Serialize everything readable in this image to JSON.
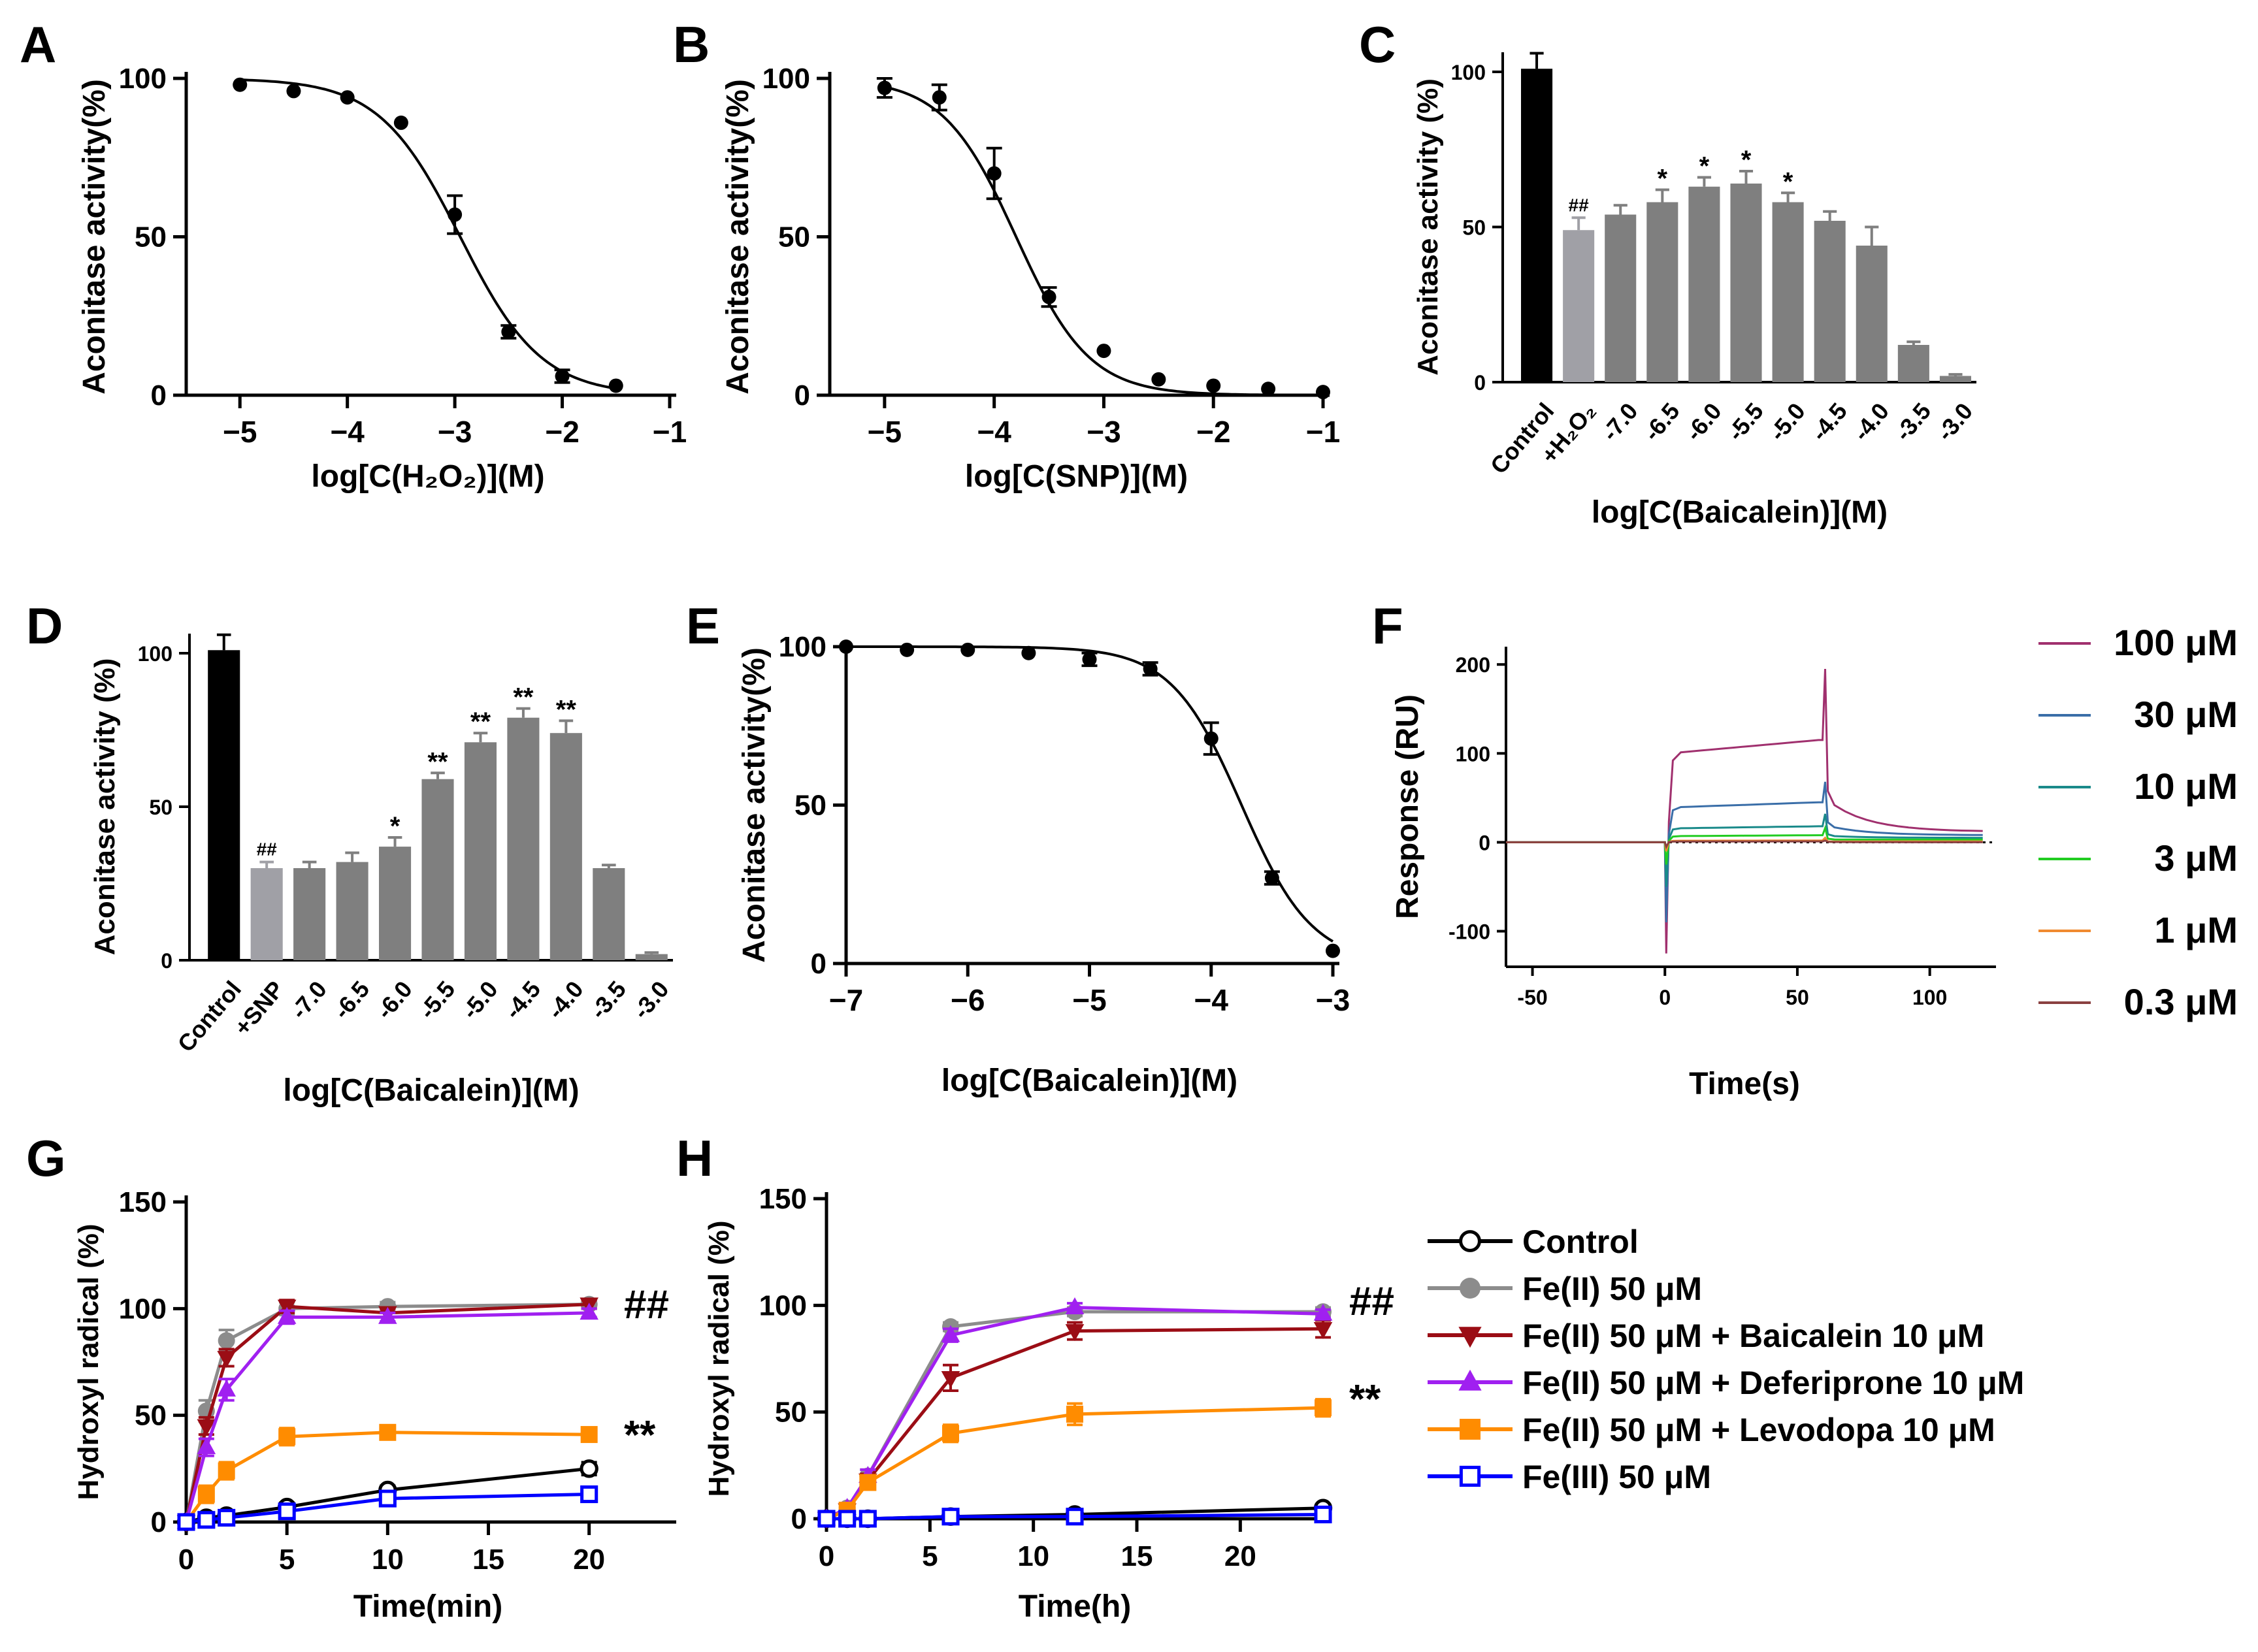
{
  "colors": {
    "black": "#000000",
    "bar_control": "#000000",
    "bar_stress": "#a0a0a6",
    "bar_treat": "#7f7f7f",
    "gray": "#8c8c8c",
    "darkred": "#9b0d15",
    "purple": "#a020f0",
    "orange": "#ff8c00",
    "blue": "#0000ff",
    "annot_gray": "#8c8c8c",
    "annot_orange": "#ff8c00"
  },
  "chart_data": [
    {
      "id": "A",
      "panel_letter": "A",
      "type": "scatter",
      "fit": "sigmoid",
      "xlabel": "log[C(H₂O₂)](M)",
      "ylabel": "Aconitase activity(%)",
      "xlim": [
        -5.5,
        -1
      ],
      "ylim": [
        0,
        100
      ],
      "xticks": [
        -5,
        -4,
        -3,
        -2,
        -1
      ],
      "xtick_labels": [
        "−5",
        "−4",
        "−3",
        "−2",
        "−1"
      ],
      "yticks": [
        0,
        50,
        100
      ],
      "ytick_labels": [
        "0",
        "50",
        "100"
      ],
      "points": [
        {
          "x": -5.0,
          "y": 98,
          "err": 0
        },
        {
          "x": -4.5,
          "y": 96,
          "err": 0
        },
        {
          "x": -4.0,
          "y": 94,
          "err": 0
        },
        {
          "x": -3.5,
          "y": 86,
          "err": 0
        },
        {
          "x": -3.0,
          "y": 57,
          "err": 6
        },
        {
          "x": -2.5,
          "y": 20,
          "err": 2
        },
        {
          "x": -2.0,
          "y": 6,
          "err": 2
        },
        {
          "x": -1.5,
          "y": 3,
          "err": 0
        }
      ],
      "curve": {
        "top": 100,
        "bottom": 0,
        "logIC50": -2.95,
        "hill": -1.15,
        "x_from": -5,
        "x_to": -1.5
      }
    },
    {
      "id": "B",
      "panel_letter": "B",
      "type": "scatter",
      "fit": "sigmoid",
      "xlabel": "log[C(SNP)](M)",
      "ylabel": "Aconitase activity(%)",
      "xlim": [
        -5.5,
        -1
      ],
      "ylim": [
        0,
        100
      ],
      "xticks": [
        -5,
        -4,
        -3,
        -2,
        -1
      ],
      "xtick_labels": [
        "−5",
        "−4",
        "−3",
        "−2",
        "−1"
      ],
      "yticks": [
        0,
        50,
        100
      ],
      "ytick_labels": [
        "0",
        "50",
        "100"
      ],
      "points": [
        {
          "x": -5.0,
          "y": 97,
          "err": 3
        },
        {
          "x": -4.5,
          "y": 94,
          "err": 4
        },
        {
          "x": -4.0,
          "y": 70,
          "err": 8
        },
        {
          "x": -3.5,
          "y": 31,
          "err": 3
        },
        {
          "x": -3.0,
          "y": 14,
          "err": 0
        },
        {
          "x": -2.5,
          "y": 5,
          "err": 0
        },
        {
          "x": -2.0,
          "y": 3,
          "err": 0
        },
        {
          "x": -1.5,
          "y": 2,
          "err": 0
        },
        {
          "x": -1.0,
          "y": 1,
          "err": 0
        }
      ],
      "curve": {
        "top": 100,
        "bottom": 0,
        "logIC50": -3.8,
        "hill": -1.3,
        "x_from": -5,
        "x_to": -1
      }
    },
    {
      "id": "C",
      "panel_letter": "C",
      "type": "bar",
      "xlabel": "log[C(Baicalein)](M)",
      "ylabel": "Aconitase activity (%)",
      "ylim": [
        0,
        100
      ],
      "yticks": [
        0,
        50,
        100
      ],
      "ytick_labels": [
        "0",
        "50",
        "100"
      ],
      "categories": [
        "Control",
        "+H₂O₂",
        "-7.0",
        "-6.5",
        "-6.0",
        "-5.5",
        "-5.0",
        "-4.5",
        "-4.0",
        "-3.5",
        "-3.0"
      ],
      "values": [
        101,
        49,
        54,
        58,
        63,
        64,
        58,
        52,
        44,
        12,
        2
      ],
      "errors": [
        5,
        4,
        3,
        4,
        3,
        4,
        3,
        3,
        6,
        1,
        0.5
      ],
      "annotations": [
        "",
        "##",
        "",
        "*",
        "*",
        "*",
        "*",
        "",
        "",
        "",
        ""
      ]
    },
    {
      "id": "D",
      "panel_letter": "D",
      "type": "bar",
      "xlabel": "log[C(Baicalein)](M)",
      "ylabel": "Aconitase activity (%)",
      "ylim": [
        0,
        100
      ],
      "yticks": [
        0,
        50,
        100
      ],
      "ytick_labels": [
        "0",
        "50",
        "100"
      ],
      "categories": [
        "Control",
        "+SNP",
        "-7.0",
        "-6.5",
        "-6.0",
        "-5.5",
        "-5.0",
        "-4.5",
        "-4.0",
        "-3.5",
        "-3.0"
      ],
      "values": [
        101,
        30,
        30,
        32,
        37,
        59,
        71,
        79,
        74,
        30,
        2
      ],
      "errors": [
        5,
        2,
        2,
        3,
        3,
        2,
        3,
        3,
        4,
        1,
        0.5
      ],
      "annotations": [
        "",
        "##",
        "",
        "",
        "*",
        "**",
        "**",
        "**",
        "**",
        "",
        ""
      ]
    },
    {
      "id": "E",
      "panel_letter": "E",
      "type": "scatter",
      "fit": "sigmoid",
      "xlabel": "log[C(Baicalein)](M)",
      "ylabel": "Aconitase activity(%)",
      "xlim": [
        -7,
        -3
      ],
      "ylim": [
        0,
        100
      ],
      "xticks": [
        -7,
        -6,
        -5,
        -4,
        -3
      ],
      "xtick_labels": [
        "−7",
        "−6",
        "−5",
        "−4",
        "−3"
      ],
      "yticks": [
        0,
        50,
        100
      ],
      "ytick_labels": [
        "0",
        "50",
        "100"
      ],
      "points": [
        {
          "x": -7.0,
          "y": 100,
          "err": 0
        },
        {
          "x": -6.5,
          "y": 99,
          "err": 0
        },
        {
          "x": -6.0,
          "y": 99,
          "err": 0
        },
        {
          "x": -5.5,
          "y": 98,
          "err": 0
        },
        {
          "x": -5.0,
          "y": 96,
          "err": 2
        },
        {
          "x": -4.5,
          "y": 93,
          "err": 2
        },
        {
          "x": -4.0,
          "y": 71,
          "err": 5
        },
        {
          "x": -3.5,
          "y": 27,
          "err": 2
        },
        {
          "x": -3.0,
          "y": 4,
          "err": 0
        }
      ],
      "curve": {
        "top": 100,
        "bottom": 0,
        "logIC50": -3.75,
        "hill": -1.5,
        "x_from": -7,
        "x_to": -3
      }
    },
    {
      "id": "F",
      "panel_letter": "F",
      "type": "line",
      "xlabel": "Time(s)",
      "ylabel": "Response (RU)",
      "xlim": [
        -60,
        125
      ],
      "ylim": [
        -140,
        220
      ],
      "xticks": [
        -50,
        0,
        50,
        100
      ],
      "xtick_labels": [
        "-50",
        "0",
        "50",
        "100"
      ],
      "yticks": [
        -100,
        0,
        100,
        200
      ],
      "ytick_labels": [
        "-100",
        "0",
        "100",
        "200"
      ],
      "series": [
        {
          "name": "100 μM",
          "color": "#a0306e",
          "plateau": 115,
          "end": 12,
          "dip": -125,
          "spike": 195
        },
        {
          "name": "30 μM",
          "color": "#3a6ea8",
          "plateau": 45,
          "end": 8,
          "dip": -90,
          "spike": 68
        },
        {
          "name": "10 μM",
          "color": "#1a8a8a",
          "plateau": 18,
          "end": 5,
          "dip": -50,
          "spike": 32
        },
        {
          "name": "3 μM",
          "color": "#22cc22",
          "plateau": 8,
          "end": 3,
          "dip": -25,
          "spike": 16
        },
        {
          "name": "1 μM",
          "color": "#f08a30",
          "plateau": 2,
          "end": 1,
          "dip": -10,
          "spike": 5
        },
        {
          "name": "0.3 μM",
          "color": "#8a4040",
          "plateau": 1,
          "end": 0,
          "dip": -5,
          "spike": 2
        }
      ]
    },
    {
      "id": "G",
      "panel_letter": "G",
      "type": "line",
      "xlabel": "Time(min)",
      "ylabel": "Hydroxyl radical (%)",
      "xlim": [
        0,
        24
      ],
      "ylim": [
        0,
        150
      ],
      "xticks": [
        0,
        5,
        10,
        15,
        20
      ],
      "xtick_labels": [
        "0",
        "5",
        "10",
        "15",
        "20"
      ],
      "yticks": [
        0,
        50,
        100,
        150
      ],
      "ytick_labels": [
        "0",
        "50",
        "100",
        "150"
      ],
      "series": [
        {
          "name": "Control",
          "key": "control",
          "x": [
            0,
            1,
            2,
            5,
            10,
            20
          ],
          "y": [
            0,
            2,
            3,
            7,
            15,
            25
          ],
          "err": [
            0,
            1,
            1,
            2,
            2,
            3
          ]
        },
        {
          "name": "Fe(II) 50 μM",
          "key": "fe2",
          "x": [
            0,
            1,
            2,
            5,
            10,
            20
          ],
          "y": [
            0,
            52,
            85,
            100,
            101,
            102
          ],
          "err": [
            0,
            5,
            5,
            3,
            2,
            2
          ]
        },
        {
          "name": "Fe(II) 50 μM + Baicalein 10 μM",
          "key": "baic",
          "x": [
            0,
            1,
            2,
            5,
            10,
            20
          ],
          "y": [
            0,
            45,
            77,
            101,
            98,
            102
          ],
          "err": [
            0,
            4,
            4,
            3,
            2,
            2
          ]
        },
        {
          "name": "Fe(II) 50 μM + Deferiprone 10 μM",
          "key": "defer",
          "x": [
            0,
            1,
            2,
            5,
            10,
            20
          ],
          "y": [
            0,
            35,
            62,
            96,
            96,
            98
          ],
          "err": [
            0,
            4,
            5,
            3,
            2,
            2
          ]
        },
        {
          "name": "Fe(II) 50 μM + Levodopa 10 μM",
          "key": "levo",
          "x": [
            0,
            1,
            2,
            5,
            10,
            20
          ],
          "y": [
            0,
            13,
            24,
            40,
            42,
            41
          ],
          "err": [
            0,
            4,
            4,
            4,
            3,
            3
          ]
        },
        {
          "name": "Fe(III) 50 μM",
          "key": "fe3",
          "x": [
            0,
            1,
            2,
            5,
            10,
            20
          ],
          "y": [
            0,
            1,
            2,
            5,
            11,
            13
          ],
          "err": [
            0,
            1,
            1,
            1,
            2,
            2
          ]
        }
      ],
      "annotations": [
        {
          "text": "##",
          "color_key": "annot_gray",
          "anchor": "top-right"
        },
        {
          "text": "**",
          "color_key": "annot_orange",
          "anchor": "middle-right"
        }
      ]
    },
    {
      "id": "H",
      "panel_letter": "H",
      "type": "line",
      "xlabel": "Time(h)",
      "ylabel": "Hydroxyl radical (%)",
      "xlim": [
        0,
        24
      ],
      "ylim": [
        0,
        150
      ],
      "xticks": [
        0,
        5,
        10,
        15,
        20
      ],
      "xtick_labels": [
        "0",
        "5",
        "10",
        "15",
        "20"
      ],
      "yticks": [
        0,
        50,
        100,
        150
      ],
      "ytick_labels": [
        "0",
        "50",
        "100",
        "150"
      ],
      "series": [
        {
          "name": "Control",
          "key": "control",
          "x": [
            0,
            1,
            2,
            6,
            12,
            24
          ],
          "y": [
            0,
            0,
            0,
            1,
            2,
            5
          ],
          "err": [
            0,
            0,
            0,
            0,
            1,
            1
          ]
        },
        {
          "name": "Fe(II) 50 μM",
          "key": "fe2",
          "x": [
            0,
            1,
            2,
            6,
            12,
            24
          ],
          "y": [
            0,
            5,
            20,
            90,
            97,
            97
          ],
          "err": [
            0,
            1,
            3,
            2,
            2,
            2
          ]
        },
        {
          "name": "Fe(II) 50 μM + Baicalein 10 μM",
          "key": "baic",
          "x": [
            0,
            1,
            2,
            6,
            12,
            24
          ],
          "y": [
            0,
            4,
            18,
            66,
            88,
            89
          ],
          "err": [
            0,
            1,
            3,
            6,
            4,
            4
          ]
        },
        {
          "name": "Fe(II) 50 μM + Deferiprone 10 μM",
          "key": "defer",
          "x": [
            0,
            1,
            2,
            6,
            12,
            24
          ],
          "y": [
            0,
            5,
            20,
            86,
            99,
            96
          ],
          "err": [
            0,
            1,
            3,
            3,
            2,
            2
          ]
        },
        {
          "name": "Fe(II) 50 μM + Levodopa 10 μM",
          "key": "levo",
          "x": [
            0,
            1,
            2,
            6,
            12,
            24
          ],
          "y": [
            0,
            4,
            17,
            40,
            49,
            52
          ],
          "err": [
            0,
            1,
            3,
            4,
            5,
            4
          ]
        },
        {
          "name": "Fe(III) 50 μM",
          "key": "fe3",
          "x": [
            0,
            1,
            2,
            6,
            12,
            24
          ],
          "y": [
            0,
            0,
            0,
            1,
            1,
            2
          ],
          "err": [
            0,
            0,
            0,
            0,
            0,
            1
          ]
        }
      ],
      "annotations": [
        {
          "text": "##",
          "color_key": "annot_gray",
          "anchor": "top-right"
        },
        {
          "text": "**",
          "color_key": "annot_orange",
          "anchor": "middle-right"
        }
      ]
    }
  ],
  "legend_gh": {
    "items": [
      {
        "label": "Control",
        "key": "control"
      },
      {
        "label": "Fe(II) 50  μM",
        "key": "fe2"
      },
      {
        "label": "Fe(II) 50  μM + Baicalein 10 μM",
        "key": "baic"
      },
      {
        "label": "Fe(II) 50  μM + Deferiprone 10 μM",
        "key": "defer"
      },
      {
        "label": "Fe(II) 50  μM + Levodopa 10 μM",
        "key": "levo"
      },
      {
        "label": "Fe(III) 50  μM",
        "key": "fe3"
      }
    ]
  }
}
